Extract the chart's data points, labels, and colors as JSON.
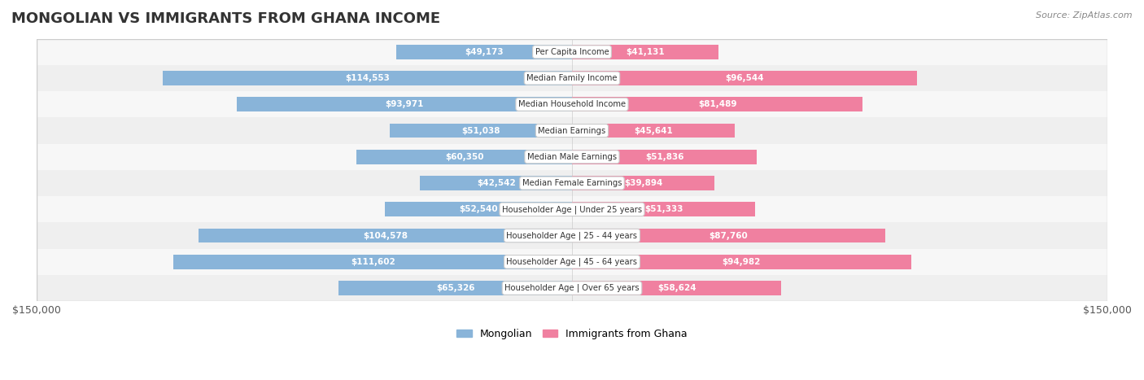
{
  "title": "MONGOLIAN VS IMMIGRANTS FROM GHANA INCOME",
  "source": "Source: ZipAtlas.com",
  "categories": [
    "Per Capita Income",
    "Median Family Income",
    "Median Household Income",
    "Median Earnings",
    "Median Male Earnings",
    "Median Female Earnings",
    "Householder Age | Under 25 years",
    "Householder Age | 25 - 44 years",
    "Householder Age | 45 - 64 years",
    "Householder Age | Over 65 years"
  ],
  "mongolian_values": [
    49173,
    114553,
    93971,
    51038,
    60350,
    42542,
    52540,
    104578,
    111602,
    65326
  ],
  "ghana_values": [
    41131,
    96544,
    81489,
    45641,
    51836,
    39894,
    51333,
    87760,
    94982,
    58624
  ],
  "mongolian_labels": [
    "$49,173",
    "$114,553",
    "$93,971",
    "$51,038",
    "$60,350",
    "$42,542",
    "$52,540",
    "$104,578",
    "$111,602",
    "$65,326"
  ],
  "ghana_labels": [
    "$41,131",
    "$96,544",
    "$81,489",
    "$45,641",
    "$51,836",
    "$39,894",
    "$51,333",
    "$87,760",
    "$94,982",
    "$58,624"
  ],
  "max_value": 150000,
  "mongolian_color": "#89b4d9",
  "ghana_color": "#f080a0",
  "mongolian_color_dark": "#5b8fc4",
  "ghana_color_dark": "#e85580",
  "bar_bg_color": "#f0f0f0",
  "row_bg_color_1": "#f7f7f7",
  "row_bg_color_2": "#efefef",
  "label_bg_color": "#ffffff",
  "text_color_dark": "#555555",
  "text_color_white": "#ffffff",
  "title_color": "#333333",
  "legend_mongolian": "Mongolian",
  "legend_ghana": "Immigrants from Ghana",
  "bar_height": 0.55,
  "ylim_axis": 150000,
  "threshold_white_label": 8000
}
